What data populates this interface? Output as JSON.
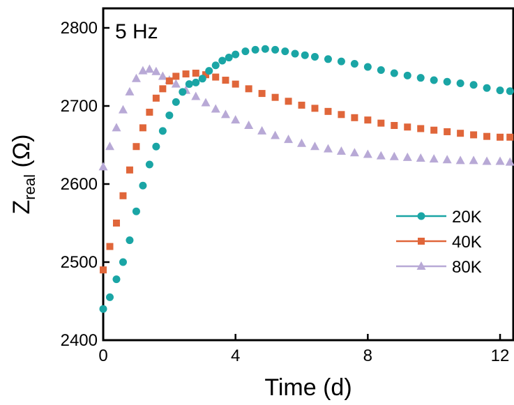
{
  "chart_data": {
    "type": "scatter",
    "annotation": "5 Hz",
    "xlabel": "Time (d)",
    "ylabel": {
      "main": "Z",
      "sub": "real",
      "unit": " (Ω)"
    },
    "xlim": [
      0,
      12.4
    ],
    "ylim": [
      2400,
      2825
    ],
    "xticks": [
      0,
      4,
      8,
      12
    ],
    "yticks": [
      2400,
      2500,
      2600,
      2700,
      2800
    ],
    "grid": false,
    "legend_position": "center-right",
    "series": [
      {
        "name": "20K",
        "marker": "circle",
        "color": "#1aa5a5",
        "points": [
          [
            0,
            2440
          ],
          [
            0.2,
            2455
          ],
          [
            0.4,
            2478
          ],
          [
            0.6,
            2500
          ],
          [
            0.8,
            2528
          ],
          [
            1.0,
            2565
          ],
          [
            1.2,
            2598
          ],
          [
            1.4,
            2625
          ],
          [
            1.6,
            2648
          ],
          [
            1.8,
            2668
          ],
          [
            2.0,
            2688
          ],
          [
            2.2,
            2705
          ],
          [
            2.4,
            2718
          ],
          [
            2.6,
            2728
          ],
          [
            2.8,
            2730
          ],
          [
            3.0,
            2735
          ],
          [
            3.2,
            2745
          ],
          [
            3.4,
            2752
          ],
          [
            3.6,
            2758
          ],
          [
            3.8,
            2762
          ],
          [
            4.0,
            2766
          ],
          [
            4.3,
            2770
          ],
          [
            4.6,
            2772
          ],
          [
            4.9,
            2773
          ],
          [
            5.2,
            2772
          ],
          [
            5.5,
            2770
          ],
          [
            5.8,
            2767
          ],
          [
            6.1,
            2765
          ],
          [
            6.4,
            2763
          ],
          [
            6.8,
            2760
          ],
          [
            7.2,
            2757
          ],
          [
            7.6,
            2754
          ],
          [
            8.0,
            2750
          ],
          [
            8.4,
            2746
          ],
          [
            8.8,
            2742
          ],
          [
            9.2,
            2739
          ],
          [
            9.6,
            2736
          ],
          [
            10.0,
            2733
          ],
          [
            10.4,
            2731
          ],
          [
            10.8,
            2729
          ],
          [
            11.2,
            2727
          ],
          [
            11.6,
            2723
          ],
          [
            12.0,
            2720
          ],
          [
            12.3,
            2719
          ]
        ]
      },
      {
        "name": "40K",
        "marker": "square",
        "color": "#e0663a",
        "points": [
          [
            0,
            2490
          ],
          [
            0.2,
            2520
          ],
          [
            0.4,
            2550
          ],
          [
            0.6,
            2585
          ],
          [
            0.8,
            2618
          ],
          [
            1.0,
            2648
          ],
          [
            1.2,
            2672
          ],
          [
            1.4,
            2692
          ],
          [
            1.6,
            2710
          ],
          [
            1.8,
            2722
          ],
          [
            2.0,
            2732
          ],
          [
            2.2,
            2738
          ],
          [
            2.5,
            2741
          ],
          [
            2.8,
            2742
          ],
          [
            3.1,
            2740
          ],
          [
            3.4,
            2737
          ],
          [
            3.7,
            2733
          ],
          [
            4.0,
            2728
          ],
          [
            4.4,
            2722
          ],
          [
            4.8,
            2716
          ],
          [
            5.2,
            2711
          ],
          [
            5.6,
            2706
          ],
          [
            6.0,
            2701
          ],
          [
            6.4,
            2697
          ],
          [
            6.8,
            2693
          ],
          [
            7.2,
            2689
          ],
          [
            7.6,
            2685
          ],
          [
            8.0,
            2682
          ],
          [
            8.4,
            2678
          ],
          [
            8.8,
            2675
          ],
          [
            9.2,
            2673
          ],
          [
            9.6,
            2671
          ],
          [
            10.0,
            2669
          ],
          [
            10.4,
            2667
          ],
          [
            10.8,
            2665
          ],
          [
            11.2,
            2663
          ],
          [
            11.6,
            2661
          ],
          [
            12.0,
            2660
          ],
          [
            12.3,
            2660
          ]
        ]
      },
      {
        "name": "80K",
        "marker": "triangle",
        "color": "#b8a9d6",
        "points": [
          [
            0,
            2622
          ],
          [
            0.2,
            2648
          ],
          [
            0.4,
            2672
          ],
          [
            0.6,
            2695
          ],
          [
            0.8,
            2718
          ],
          [
            1.0,
            2735
          ],
          [
            1.2,
            2745
          ],
          [
            1.4,
            2747
          ],
          [
            1.6,
            2744
          ],
          [
            1.8,
            2738
          ],
          [
            2.0,
            2733
          ],
          [
            2.2,
            2728
          ],
          [
            2.5,
            2720
          ],
          [
            2.8,
            2712
          ],
          [
            3.1,
            2704
          ],
          [
            3.4,
            2696
          ],
          [
            3.7,
            2689
          ],
          [
            4.0,
            2682
          ],
          [
            4.4,
            2675
          ],
          [
            4.8,
            2668
          ],
          [
            5.2,
            2662
          ],
          [
            5.6,
            2657
          ],
          [
            6.0,
            2652
          ],
          [
            6.4,
            2648
          ],
          [
            6.8,
            2645
          ],
          [
            7.2,
            2642
          ],
          [
            7.6,
            2640
          ],
          [
            8.0,
            2638
          ],
          [
            8.4,
            2636
          ],
          [
            8.8,
            2635
          ],
          [
            9.2,
            2634
          ],
          [
            9.6,
            2633
          ],
          [
            10.0,
            2632
          ],
          [
            10.4,
            2631
          ],
          [
            10.8,
            2630
          ],
          [
            11.2,
            2630
          ],
          [
            11.6,
            2629
          ],
          [
            12.0,
            2629
          ],
          [
            12.3,
            2628
          ]
        ]
      }
    ]
  }
}
